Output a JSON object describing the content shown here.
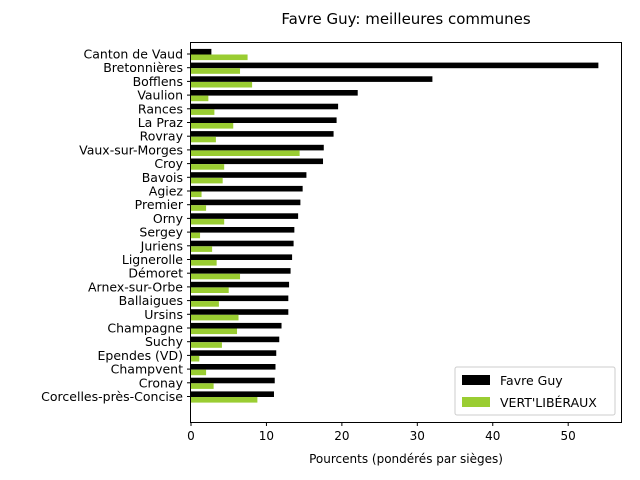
{
  "chart_data": {
    "type": "bar",
    "orientation": "horizontal",
    "title": "Favre Guy: meilleures communes",
    "xlabel": "Pourcents (pondérés par sièges)",
    "ylabel": "",
    "xlim": [
      0,
      57
    ],
    "xticks": [
      0,
      10,
      20,
      30,
      40,
      50
    ],
    "grid": false,
    "legend_position": "bottom-right",
    "categories": [
      "Canton de Vaud",
      "Bretonnières",
      "Bofflens",
      "Vaulion",
      "Rances",
      "La Praz",
      "Rovray",
      "Vaux-sur-Morges",
      "Croy",
      "Bavois",
      "Agiez",
      "Premier",
      "Orny",
      "Sergey",
      "Juriens",
      "Lignerolle",
      "Démoret",
      "Arnex-sur-Orbe",
      "Ballaigues",
      "Ursins",
      "Champagne",
      "Suchy",
      "Ependes (VD)",
      "Champvent",
      "Cronay",
      "Corcelles-près-Concise"
    ],
    "series": [
      {
        "name": "Favre Guy",
        "color": "#000000",
        "values": [
          2.7,
          54.0,
          32.0,
          22.1,
          19.5,
          19.3,
          18.9,
          17.6,
          17.5,
          15.3,
          14.8,
          14.5,
          14.2,
          13.7,
          13.6,
          13.4,
          13.2,
          13.0,
          12.9,
          12.9,
          12.0,
          11.7,
          11.3,
          11.2,
          11.1,
          11.0
        ]
      },
      {
        "name": "VERT'LIBÉRAUX",
        "color": "#9acd32",
        "values": [
          7.5,
          6.5,
          8.1,
          2.3,
          3.1,
          5.6,
          3.3,
          14.4,
          4.4,
          4.2,
          1.4,
          2.0,
          4.4,
          1.2,
          2.8,
          3.4,
          6.5,
          5.0,
          3.7,
          6.3,
          6.1,
          4.1,
          1.1,
          2.0,
          3.0,
          8.8
        ]
      }
    ]
  }
}
